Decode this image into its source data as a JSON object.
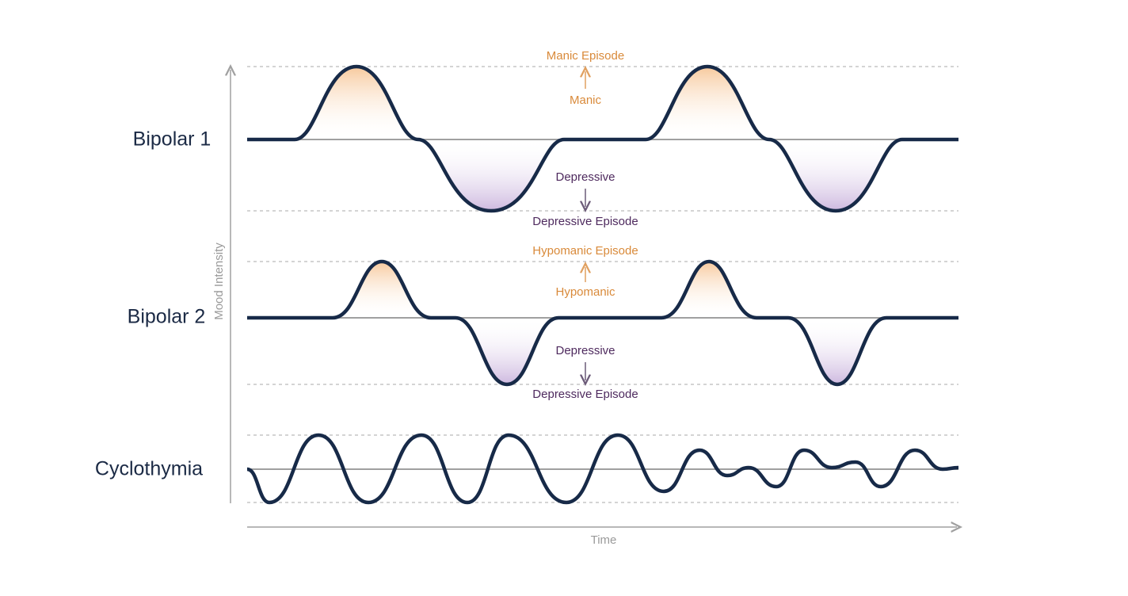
{
  "axes": {
    "y_label": "Mood Intensity",
    "x_label": "Time"
  },
  "rows": [
    {
      "label": "Bipolar 1",
      "upper_episode": "Manic Episode",
      "upper": "Manic",
      "lower": "Depressive",
      "lower_episode": "Depressive Episode"
    },
    {
      "label": "Bipolar 2",
      "upper_episode": "Hypomanic Episode",
      "upper": "Hypomanic",
      "lower": "Depressive",
      "lower_episode": "Depressive Episode"
    },
    {
      "label": "Cyclothymia"
    }
  ]
}
